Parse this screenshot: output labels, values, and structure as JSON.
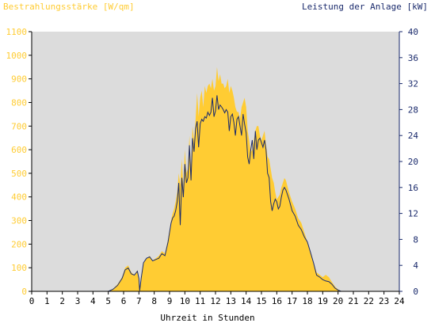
{
  "chart_data": {
    "type": "area",
    "title_left": "Bestrahlungsstärke [W/qm]",
    "title_right": "Leistung der Anlage [kW]",
    "xlabel": "Uhrzeit in Stunden",
    "x_ticks": [
      "0",
      "1",
      "2",
      "3",
      "4",
      "5",
      "6",
      "7",
      "8",
      "9",
      "10",
      "11",
      "12",
      "13",
      "14",
      "15",
      "16",
      "17",
      "18",
      "19",
      "20",
      "21",
      "22",
      "23",
      "24"
    ],
    "y_left_ticks": [
      "0",
      "100",
      "200",
      "300",
      "400",
      "500",
      "600",
      "700",
      "800",
      "900",
      "1000",
      "1100"
    ],
    "y_right_ticks": [
      "0",
      "4",
      "8",
      "12",
      "16",
      "20",
      "24",
      "28",
      "32",
      "36",
      "40"
    ],
    "x_range": [
      0,
      24
    ],
    "y_left_range": [
      0,
      1100
    ],
    "y_right_range": [
      0,
      40
    ],
    "grid": false,
    "colors": {
      "plot_bg": "#dcdcdc",
      "irradiance_fill": "#ffcc33",
      "power_line": "#1a2a6c",
      "left_axis_text": "#ffcc33",
      "right_axis_text": "#1a2a6c",
      "axis_line": "#000000"
    },
    "series": [
      {
        "x": [
          0,
          5.0,
          5.3,
          5.6,
          5.9,
          6.1,
          6.3,
          6.5,
          6.7,
          6.9,
          7.0,
          7.05,
          7.15,
          7.3,
          7.5,
          7.7,
          7.9,
          8.1,
          8.3,
          8.5,
          8.7,
          8.9,
          9.0,
          9.1,
          9.2,
          9.3,
          9.4,
          9.5,
          9.6,
          9.7,
          9.8,
          9.9,
          10.0,
          10.1,
          10.2,
          10.3,
          10.4,
          10.5,
          10.6,
          10.7,
          10.8,
          10.9,
          11.0,
          11.1,
          11.2,
          11.3,
          11.4,
          11.5,
          11.6,
          11.7,
          11.8,
          11.9,
          12.0,
          12.1,
          12.2,
          12.3,
          12.4,
          12.5,
          12.6,
          12.7,
          12.8,
          12.9,
          13.0,
          13.1,
          13.2,
          13.3,
          13.4,
          13.5,
          13.6,
          13.7,
          13.8,
          13.9,
          14.0,
          14.1,
          14.2,
          14.3,
          14.4,
          14.5,
          14.6,
          14.7,
          14.8,
          14.9,
          15.0,
          15.1,
          15.2,
          15.3,
          15.4,
          15.5,
          15.6,
          15.7,
          15.8,
          15.9,
          16.0,
          16.1,
          16.2,
          16.3,
          16.4,
          16.5,
          16.6,
          16.8,
          17.0,
          17.2,
          17.4,
          17.6,
          17.8,
          18.0,
          18.2,
          18.4,
          18.6,
          18.8,
          19.0,
          19.2,
          19.4,
          19.6,
          19.8,
          20.0,
          20.2,
          20.4,
          24
        ],
        "values": [
          0,
          0,
          10,
          30,
          60,
          100,
          110,
          80,
          70,
          90,
          60,
          5,
          60,
          120,
          140,
          150,
          130,
          140,
          150,
          170,
          160,
          220,
          260,
          300,
          330,
          350,
          380,
          420,
          500,
          450,
          560,
          440,
          600,
          500,
          520,
          660,
          520,
          700,
          640,
          730,
          840,
          740,
          820,
          850,
          780,
          870,
          840,
          870,
          880,
          860,
          900,
          850,
          870,
          950,
          890,
          920,
          880,
          880,
          860,
          870,
          900,
          840,
          870,
          850,
          820,
          780,
          760,
          760,
          730,
          780,
          800,
          820,
          780,
          680,
          640,
          590,
          600,
          640,
          680,
          700,
          700,
          660,
          640,
          660,
          680,
          620,
          570,
          560,
          520,
          480,
          460,
          420,
          390,
          400,
          410,
          440,
          460,
          480,
          470,
          420,
          380,
          350,
          310,
          290,
          250,
          210,
          170,
          120,
          80,
          70,
          60,
          70,
          60,
          40,
          20,
          8,
          0,
          0,
          0
        ]
      },
      {
        "x": [
          0,
          5.0,
          5.3,
          5.6,
          5.9,
          6.1,
          6.3,
          6.5,
          6.7,
          6.9,
          7.0,
          7.05,
          7.15,
          7.3,
          7.5,
          7.7,
          7.9,
          8.1,
          8.3,
          8.5,
          8.7,
          8.9,
          9.0,
          9.1,
          9.2,
          9.3,
          9.4,
          9.5,
          9.6,
          9.7,
          9.8,
          9.9,
          10.0,
          10.1,
          10.2,
          10.3,
          10.4,
          10.5,
          10.6,
          10.7,
          10.8,
          10.9,
          11.0,
          11.1,
          11.2,
          11.3,
          11.4,
          11.5,
          11.6,
          11.7,
          11.8,
          11.9,
          12.0,
          12.1,
          12.2,
          12.3,
          12.4,
          12.5,
          12.6,
          12.7,
          12.8,
          12.9,
          13.0,
          13.1,
          13.2,
          13.3,
          13.4,
          13.5,
          13.6,
          13.7,
          13.8,
          13.9,
          14.0,
          14.1,
          14.2,
          14.3,
          14.4,
          14.5,
          14.6,
          14.7,
          14.8,
          14.9,
          15.0,
          15.1,
          15.2,
          15.3,
          15.4,
          15.5,
          15.6,
          15.7,
          15.8,
          15.9,
          16.0,
          16.1,
          16.2,
          16.3,
          16.4,
          16.5,
          16.6,
          16.8,
          17.0,
          17.2,
          17.4,
          17.6,
          17.8,
          18.0,
          18.2,
          18.4,
          18.6,
          18.8,
          19.0,
          19.2,
          19.4,
          19.6,
          19.8,
          20.0,
          20.2,
          20.4,
          24
        ],
        "values": [
          0,
          0,
          0.3,
          0.9,
          2.0,
          3.3,
          3.6,
          2.7,
          2.5,
          3.1,
          2.0,
          0.1,
          2.0,
          4.4,
          5.1,
          5.3,
          4.7,
          4.9,
          5.1,
          5.8,
          5.5,
          7.6,
          9.1,
          10.5,
          11.3,
          11.6,
          12.4,
          13.8,
          16.7,
          10.2,
          17.5,
          14.5,
          19.6,
          16.7,
          17.5,
          22.5,
          17.1,
          23.6,
          21.5,
          25.1,
          26.2,
          22.2,
          25.8,
          26.5,
          26.2,
          26.9,
          26.7,
          27.6,
          27.1,
          27.6,
          29.8,
          26.9,
          27.8,
          30.2,
          28.0,
          28.7,
          28.4,
          28.0,
          27.5,
          28.0,
          27.6,
          24.7,
          26.9,
          27.3,
          26.0,
          24.0,
          26.5,
          26.9,
          25.5,
          24.0,
          27.3,
          25.8,
          24.4,
          20.7,
          19.6,
          21.8,
          23.3,
          20.4,
          24.7,
          21.8,
          23.3,
          23.6,
          22.9,
          22.2,
          23.3,
          21.8,
          18.2,
          17.5,
          13.8,
          12.4,
          13.5,
          14.2,
          13.8,
          12.7,
          13.1,
          14.5,
          15.6,
          16.0,
          15.6,
          14.2,
          12.4,
          11.6,
          10.2,
          9.5,
          8.4,
          7.6,
          6.0,
          4.4,
          2.5,
          2.2,
          1.8,
          1.6,
          1.5,
          1.1,
          0.5,
          0.2,
          0,
          0,
          0
        ]
      }
    ]
  }
}
